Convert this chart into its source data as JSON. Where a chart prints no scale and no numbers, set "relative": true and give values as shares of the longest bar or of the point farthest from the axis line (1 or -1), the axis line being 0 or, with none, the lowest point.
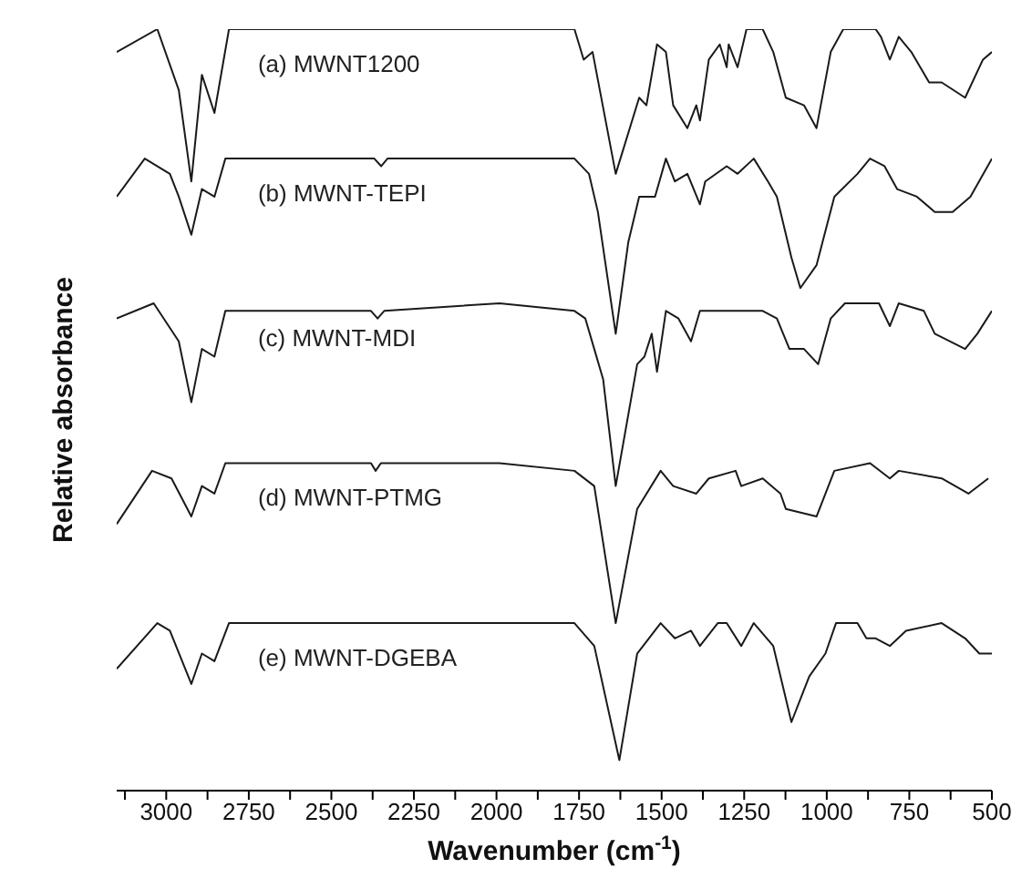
{
  "chart_data": {
    "type": "line",
    "relative": true,
    "xlabel": "Wavenumber (cm$^{-1}$)",
    "ylabel": "Relative absorbance",
    "xlim": [
      3150,
      500
    ],
    "xticks": [
      {
        "value": 3125,
        "label": null
      },
      3000,
      {
        "value": 2875,
        "label": null
      },
      2750,
      {
        "value": 2625,
        "label": null
      },
      2500,
      {
        "value": 2375,
        "label": null
      },
      2250,
      {
        "value": 2125,
        "label": null
      },
      2000,
      {
        "value": 1875,
        "label": null
      },
      1750,
      {
        "value": 1625,
        "label": null
      },
      1500,
      {
        "value": 1375,
        "label": null
      },
      1250,
      {
        "value": 1125,
        "label": null
      },
      1000,
      {
        "value": 875,
        "label": null
      },
      750,
      {
        "value": 625,
        "label": null
      },
      500
    ],
    "grid": false,
    "legend": false,
    "marker": "none",
    "line_style": "solid",
    "tick_labels": "x",
    "series": [
      {
        "name": "(a) MWNT1200",
        "color": "#1a1a1a",
        "x": [
          3150,
          3027,
          2962,
          2924,
          2892,
          2854,
          2810,
          1764,
          1736,
          1709,
          1639,
          1568,
          1546,
          1514,
          1487,
          1465,
          1422,
          1395,
          1384,
          1357,
          1324,
          1303,
          1297,
          1270,
          1243,
          1194,
          1162,
          1124,
          1069,
          1031,
          988,
          950,
          852,
          836,
          809,
          782,
          744,
          690,
          652,
          581,
          527,
          500
        ],
        "values": [
          0.97,
          1.0,
          0.92,
          0.8,
          0.94,
          0.89,
          1.0,
          1.0,
          0.96,
          0.97,
          0.81,
          0.91,
          0.9,
          0.98,
          0.97,
          0.9,
          0.87,
          0.9,
          0.88,
          0.96,
          0.98,
          0.95,
          0.98,
          0.95,
          1.0,
          1.0,
          0.97,
          0.91,
          0.9,
          0.87,
          0.97,
          1.0,
          1.0,
          0.99,
          0.96,
          0.99,
          0.97,
          0.93,
          0.93,
          0.91,
          0.96,
          0.97
        ]
      },
      {
        "name": "(b) MWNT-TEPI",
        "color": "#1a1a1a",
        "x": [
          3150,
          3065,
          2989,
          2962,
          2924,
          2892,
          2854,
          2821,
          2370,
          2349,
          2330,
          1764,
          1720,
          1693,
          1639,
          1601,
          1568,
          1520,
          1487,
          1460,
          1422,
          1384,
          1368,
          1303,
          1270,
          1221,
          1178,
          1151,
          1107,
          1080,
          1031,
          977,
          907,
          869,
          825,
          787,
          727,
          673,
          619,
          565,
          500
        ],
        "values": [
          0.78,
          0.83,
          0.81,
          0.78,
          0.73,
          0.79,
          0.78,
          0.83,
          0.83,
          0.82,
          0.83,
          0.83,
          0.81,
          0.76,
          0.6,
          0.72,
          0.78,
          0.78,
          0.83,
          0.8,
          0.81,
          0.77,
          0.8,
          0.82,
          0.81,
          0.83,
          0.8,
          0.78,
          0.7,
          0.66,
          0.69,
          0.78,
          0.81,
          0.83,
          0.82,
          0.79,
          0.78,
          0.76,
          0.76,
          0.78,
          0.83
        ]
      },
      {
        "name": "(c) MWNT-MDI",
        "color": "#1a1a1a",
        "x": [
          3150,
          3038,
          2962,
          2924,
          2892,
          2854,
          2821,
          2380,
          2360,
          2340,
          1991,
          1764,
          1731,
          1704,
          1677,
          1639,
          1574,
          1552,
          1530,
          1514,
          1487,
          1449,
          1411,
          1384,
          1341,
          1297,
          1248,
          1194,
          1151,
          1113,
          1069,
          1026,
          988,
          945,
          842,
          809,
          782,
          706,
          673,
          581,
          544,
          500
        ],
        "values": [
          0.62,
          0.64,
          0.59,
          0.51,
          0.58,
          0.57,
          0.63,
          0.63,
          0.62,
          0.63,
          0.64,
          0.63,
          0.62,
          0.58,
          0.54,
          0.4,
          0.56,
          0.57,
          0.6,
          0.55,
          0.63,
          0.62,
          0.59,
          0.63,
          0.63,
          0.63,
          0.63,
          0.63,
          0.62,
          0.58,
          0.58,
          0.56,
          0.62,
          0.64,
          0.64,
          0.61,
          0.64,
          0.63,
          0.6,
          0.58,
          0.6,
          0.63
        ]
      },
      {
        "name": "(d) MWNT-PTMG",
        "color": "#1a1a1a",
        "x": [
          3150,
          3043,
          2984,
          2924,
          2892,
          2854,
          2821,
          2380,
          2366,
          2350,
          1991,
          1764,
          1704,
          1639,
          1574,
          1503,
          1465,
          1395,
          1357,
          1276,
          1259,
          1194,
          1140,
          1124,
          1031,
          977,
          869,
          809,
          782,
          652,
          571,
          511
        ],
        "values": [
          0.35,
          0.42,
          0.41,
          0.36,
          0.4,
          0.39,
          0.43,
          0.43,
          0.42,
          0.43,
          0.43,
          0.42,
          0.4,
          0.22,
          0.37,
          0.42,
          0.4,
          0.39,
          0.41,
          0.42,
          0.4,
          0.41,
          0.39,
          0.37,
          0.36,
          0.42,
          0.43,
          0.41,
          0.42,
          0.41,
          0.39,
          0.41
        ]
      },
      {
        "name": "(e) MWNT-DGEBA",
        "color": "#1a1a1a",
        "x": [
          3150,
          3027,
          2989,
          2924,
          2892,
          2854,
          2810,
          1991,
          1764,
          1704,
          1628,
          1574,
          1503,
          1460,
          1411,
          1384,
          1330,
          1303,
          1259,
          1221,
          1162,
          1107,
          1053,
          1004,
          972,
          907,
          880,
          852,
          809,
          760,
          652,
          581,
          538,
          500
        ],
        "values": [
          0.16,
          0.22,
          0.21,
          0.14,
          0.18,
          0.17,
          0.22,
          0.22,
          0.22,
          0.19,
          0.04,
          0.18,
          0.22,
          0.2,
          0.21,
          0.19,
          0.22,
          0.22,
          0.19,
          0.22,
          0.19,
          0.09,
          0.15,
          0.18,
          0.22,
          0.22,
          0.2,
          0.2,
          0.19,
          0.21,
          0.22,
          0.2,
          0.18,
          0.18
        ]
      }
    ]
  }
}
